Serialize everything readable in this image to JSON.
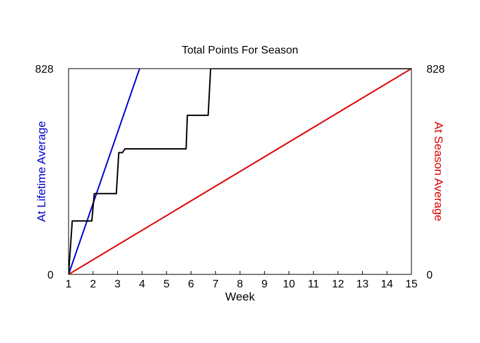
{
  "chart_data": {
    "type": "line",
    "title": "Total Points For Season",
    "xlabel": "Week",
    "ylabel_left": "At Lifetime Average",
    "ylabel_right": "At Season Average",
    "xlim": [
      1,
      15
    ],
    "ylim": [
      0,
      828
    ],
    "x_ticks": [
      1,
      2,
      3,
      4,
      5,
      6,
      7,
      8,
      9,
      10,
      11,
      12,
      13,
      14,
      15
    ],
    "y_ticks_left": [
      0,
      828
    ],
    "y_ticks_right": [
      0,
      828
    ],
    "grid": false,
    "colors": {
      "lifetime": "#0000cc",
      "season": "#dd0000",
      "actual": "#000000",
      "left_label": "#0000cc",
      "right_label": "#dd0000"
    },
    "series": [
      {
        "key": "lifetime",
        "x": [
          1,
          3.9
        ],
        "y": [
          0,
          828
        ]
      },
      {
        "key": "season",
        "x": [
          1,
          15
        ],
        "y": [
          0,
          828
        ]
      },
      {
        "key": "actual",
        "x": [
          1,
          1.15,
          1.95,
          2.05,
          2.95,
          3.05,
          3.2,
          3.3,
          5.8,
          5.85,
          6.7,
          6.8,
          15
        ],
        "y": [
          0,
          215,
          215,
          325,
          325,
          490,
          490,
          505,
          505,
          640,
          640,
          828,
          828
        ]
      }
    ]
  }
}
